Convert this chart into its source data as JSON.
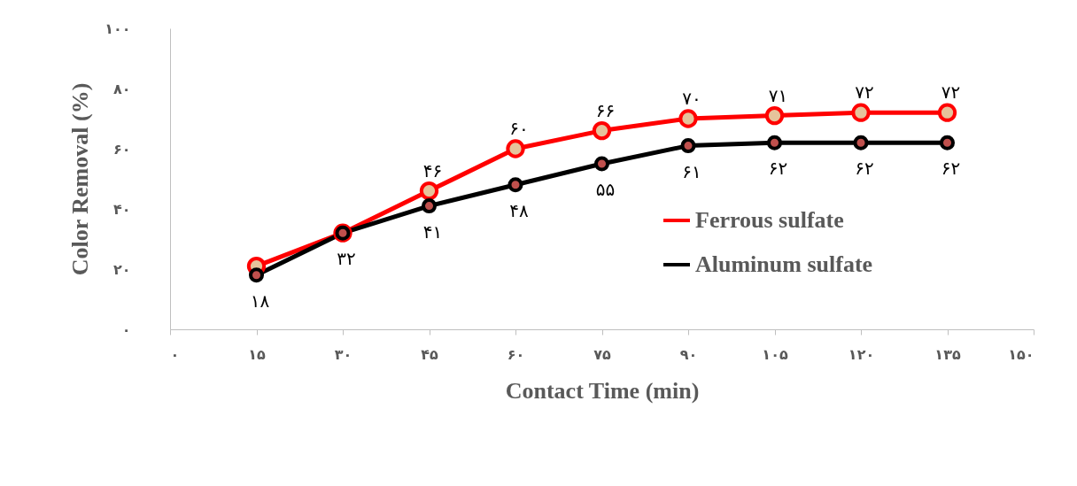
{
  "chart_data": {
    "type": "line",
    "xlabel": "Contact Time (min)",
    "ylabel": "Color Removal (%)",
    "x": [
      15,
      30,
      45,
      60,
      75,
      90,
      105,
      120,
      135
    ],
    "series": [
      {
        "name": "Ferrous sulfate",
        "color": "#ff0000",
        "values": [
          21,
          32,
          46,
          60,
          66,
          70,
          71,
          72,
          72
        ],
        "value_labels": [
          null,
          null,
          "۴۶",
          "۶۰",
          "۶۶",
          "۷۰",
          "۷۱",
          "۷۲",
          "۷۲"
        ]
      },
      {
        "name": "Aluminum sulfate",
        "color": "#000000",
        "values": [
          18,
          32,
          41,
          48,
          55,
          61,
          62,
          62,
          62
        ],
        "value_labels": [
          "۱۸",
          "۳۲",
          "۴۱",
          "۴۸",
          "۵۵",
          "۶۱",
          "۶۲",
          "۶۲",
          "۶۲"
        ]
      }
    ],
    "xlim": [
      0,
      150
    ],
    "ylim": [
      0,
      100
    ],
    "xticks": [
      {
        "value": 0,
        "label": "۰"
      },
      {
        "value": 15,
        "label": "۱۵"
      },
      {
        "value": 30,
        "label": "۳۰"
      },
      {
        "value": 45,
        "label": "۴۵"
      },
      {
        "value": 60,
        "label": "۶۰"
      },
      {
        "value": 75,
        "label": "۷۵"
      },
      {
        "value": 90,
        "label": "۹۰"
      },
      {
        "value": 105,
        "label": "۱۰۵"
      },
      {
        "value": 120,
        "label": "۱۲۰"
      },
      {
        "value": 135,
        "label": "۱۳۵"
      },
      {
        "value": 150,
        "label": "۱۵۰"
      }
    ],
    "yticks": [
      {
        "value": 0,
        "label": "۰"
      },
      {
        "value": 20,
        "label": "۲۰"
      },
      {
        "value": 40,
        "label": "۴۰"
      },
      {
        "value": 60,
        "label": "۶۰"
      },
      {
        "value": 80,
        "label": "۸۰"
      },
      {
        "value": 100,
        "label": "۱۰۰"
      }
    ],
    "grid": false,
    "legend": "right",
    "marker": "circle",
    "line_style": "solid"
  }
}
